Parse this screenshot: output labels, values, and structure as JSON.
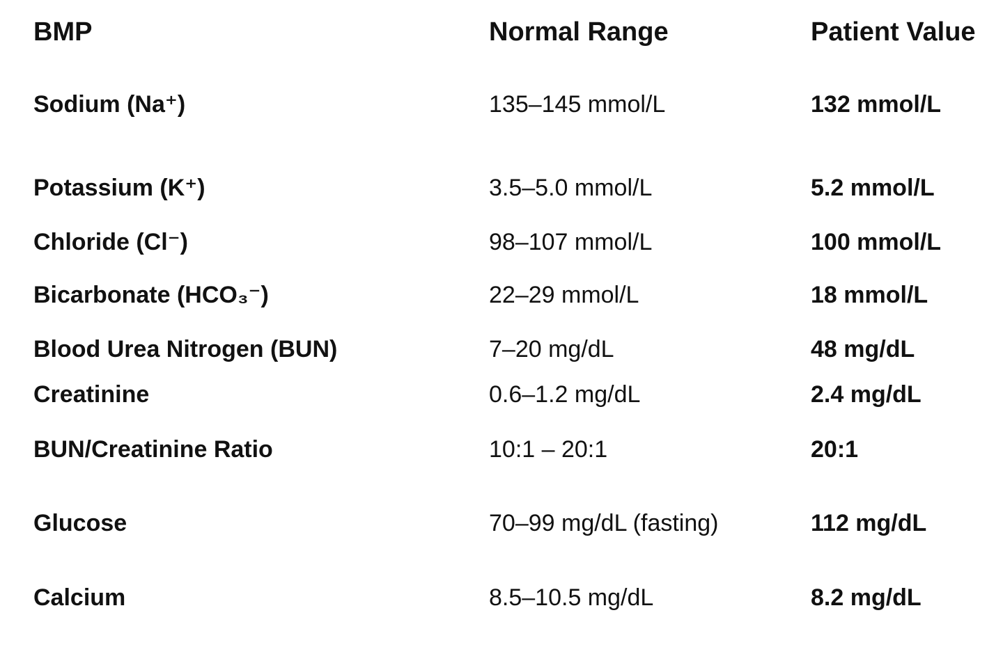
{
  "header": {
    "test": "BMP",
    "range": "Normal Range",
    "value": "Patient Value"
  },
  "rows": [
    {
      "test": "Sodium (Na⁺)",
      "range": "135–145 mmol/L",
      "value": "132 mmol/L"
    },
    {
      "test": "Potassium (K⁺)",
      "range": "3.5–5.0 mmol/L",
      "value": "5.2 mmol/L"
    },
    {
      "test": "Chloride (Cl⁻)",
      "range": "98–107 mmol/L",
      "value": "100 mmol/L"
    },
    {
      "test": "Bicarbonate (HCO₃⁻)",
      "range": "22–29 mmol/L",
      "value": "18 mmol/L"
    },
    {
      "test": "Blood Urea Nitrogen (BUN)",
      "range": "7–20 mg/dL",
      "value": "48 mg/dL"
    },
    {
      "test": "Creatinine",
      "range": "0.6–1.2 mg/dL",
      "value": "2.4 mg/dL"
    },
    {
      "test": "BUN/Creatinine Ratio",
      "range": "10:1 – 20:1",
      "value": "20:1"
    },
    {
      "test": "Glucose",
      "range": "70–99 mg/dL (fasting)",
      "value": "112 mg/dL"
    },
    {
      "test": "Calcium",
      "range": "8.5–10.5 mg/dL",
      "value": "8.2 mg/dL"
    }
  ]
}
